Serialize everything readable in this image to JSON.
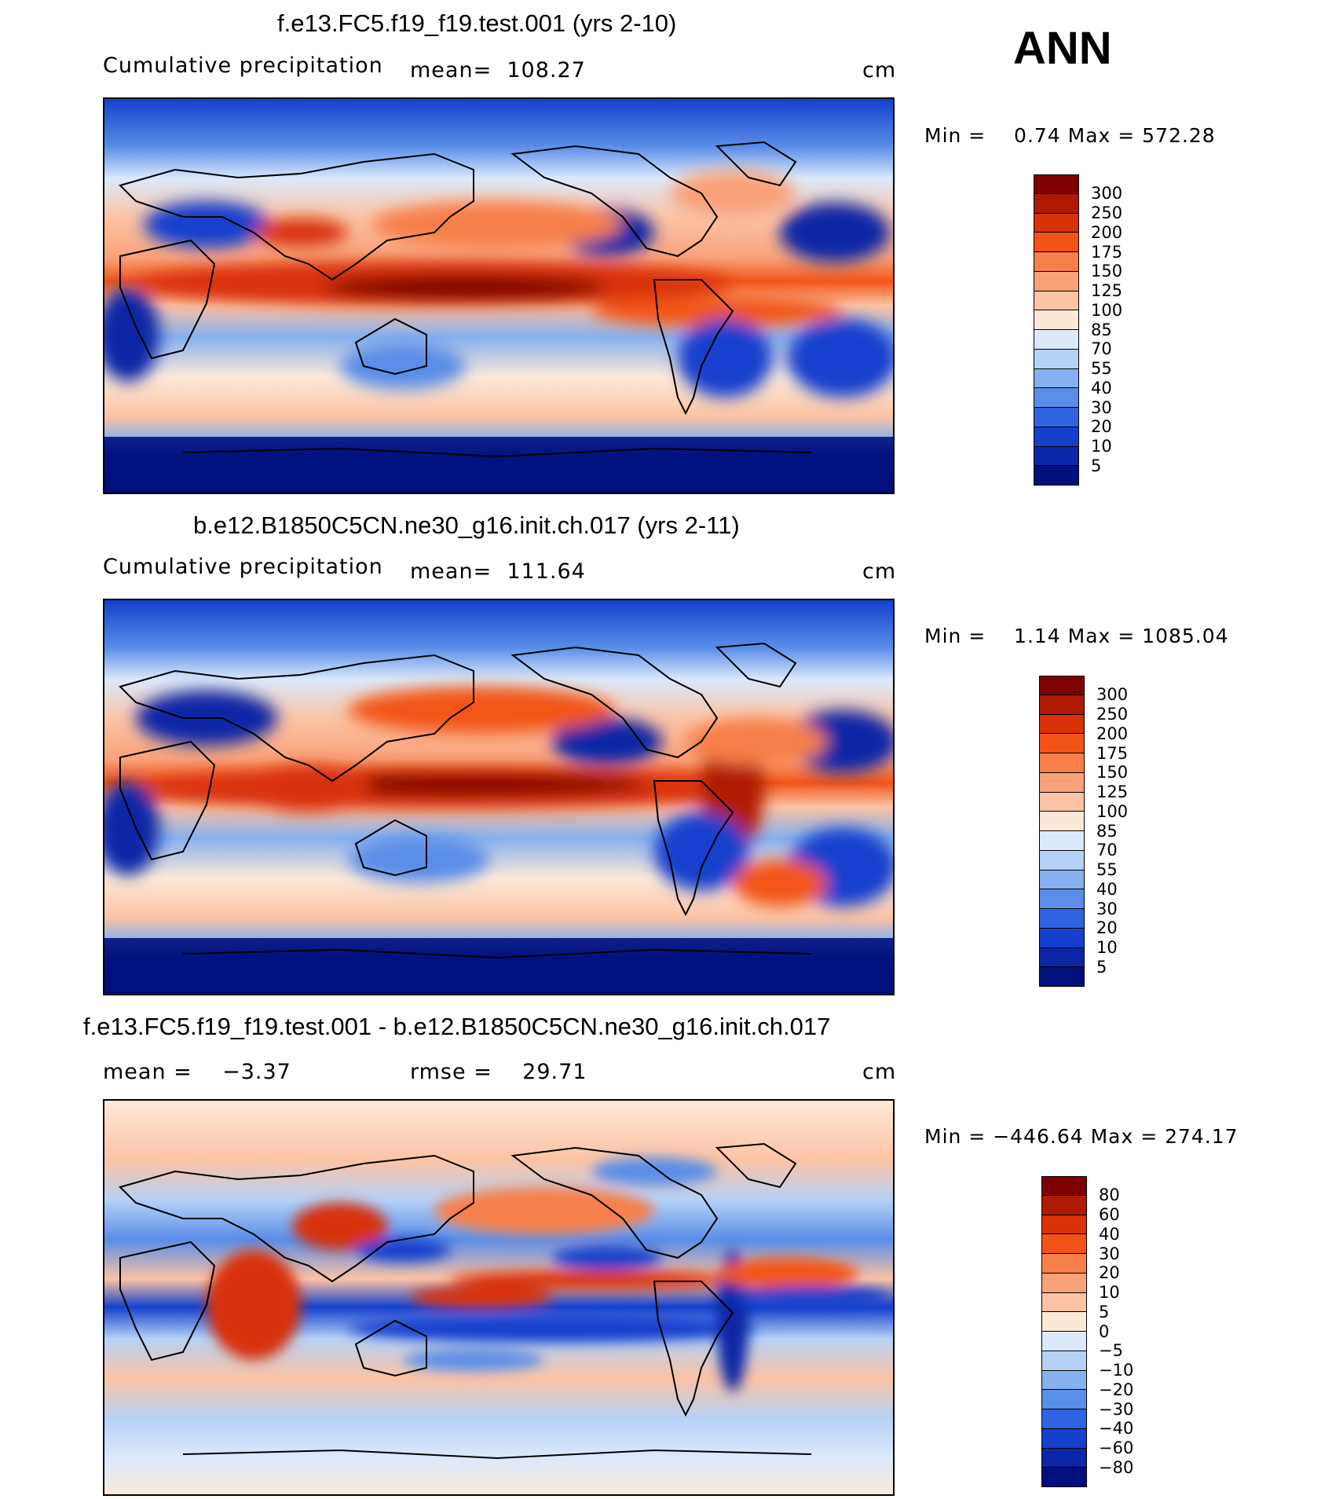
{
  "season": "ANN",
  "panels": [
    {
      "title": "f.e13.FC5.f19_f19.test.001 (yrs 2-10)",
      "variable": "Cumulative precipitation",
      "mean_label": "mean=",
      "mean_value": "108.27",
      "units": "cm",
      "minmax": "Min =    0.74 Max = 572.28",
      "colorbar": {
        "labels": [
          "300",
          "250",
          "200",
          "175",
          "150",
          "125",
          "100",
          "85",
          "70",
          "55",
          "40",
          "30",
          "20",
          "10",
          "5"
        ],
        "colors": [
          "#7f0000",
          "#b01a05",
          "#d83208",
          "#f25418",
          "#f77f49",
          "#f9a27a",
          "#fcc3a5",
          "#fde9d8",
          "#dbe9fb",
          "#b6d1f6",
          "#86b0ef",
          "#5a8de8",
          "#2f63e0",
          "#1440cd",
          "#0b26a6",
          "#000f7c"
        ]
      }
    },
    {
      "title": "b.e12.B1850C5CN.ne30_g16.init.ch.017 (yrs 2-11)",
      "variable": "Cumulative precipitation",
      "mean_label": "mean=",
      "mean_value": "111.64",
      "units": "cm",
      "minmax": "Min =    1.14 Max = 1085.04",
      "colorbar": {
        "labels": [
          "300",
          "250",
          "200",
          "175",
          "150",
          "125",
          "100",
          "85",
          "70",
          "55",
          "40",
          "30",
          "20",
          "10",
          "5"
        ],
        "colors": [
          "#7f0000",
          "#b01a05",
          "#d83208",
          "#f25418",
          "#f77f49",
          "#f9a27a",
          "#fcc3a5",
          "#fde9d8",
          "#dbe9fb",
          "#b6d1f6",
          "#86b0ef",
          "#5a8de8",
          "#2f63e0",
          "#1440cd",
          "#0b26a6",
          "#000f7c"
        ]
      }
    },
    {
      "title": "f.e13.FC5.f19_f19.test.001 - b.e12.B1850C5CN.ne30_g16.init.ch.017",
      "mean_label": "mean =",
      "mean_value": "−3.37",
      "rmse_label": "rmse =",
      "rmse_value": "29.71",
      "units": "cm",
      "minmax": "Min = −446.64 Max = 274.17",
      "colorbar": {
        "labels": [
          "80",
          "60",
          "40",
          "30",
          "20",
          "10",
          "5",
          "0",
          "−5",
          "−10",
          "−20",
          "−30",
          "−40",
          "−60",
          "−80"
        ],
        "colors": [
          "#7f0000",
          "#b01a05",
          "#d83208",
          "#f25418",
          "#f77f49",
          "#f9a27a",
          "#fcc3a5",
          "#fde9d8",
          "#dbe9fb",
          "#b6d1f6",
          "#86b0ef",
          "#5a8de8",
          "#2f63e0",
          "#1440cd",
          "#0b26a6",
          "#000f7c"
        ]
      }
    }
  ]
}
